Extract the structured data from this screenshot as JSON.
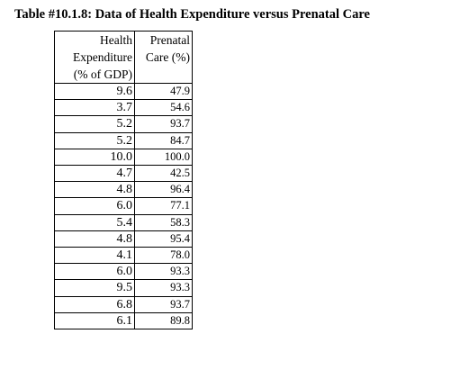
{
  "table": {
    "title": "Table #10.1.8: Data of Health Expenditure versus Prenatal Care",
    "headers": [
      [
        "Health",
        "Expenditure",
        "(% of GDP)"
      ],
      [
        "Prenatal",
        "Care (%)"
      ]
    ],
    "rows": [
      [
        "9.6",
        "47.9"
      ],
      [
        "3.7",
        "54.6"
      ],
      [
        "5.2",
        "93.7"
      ],
      [
        "5.2",
        "84.7"
      ],
      [
        "10.0",
        "100.0"
      ],
      [
        "4.7",
        "42.5"
      ],
      [
        "4.8",
        "96.4"
      ],
      [
        "6.0",
        "77.1"
      ],
      [
        "5.4",
        "58.3"
      ],
      [
        "4.8",
        "95.4"
      ],
      [
        "4.1",
        "78.0"
      ],
      [
        "6.0",
        "93.3"
      ],
      [
        "9.5",
        "93.3"
      ],
      [
        "6.8",
        "93.7"
      ],
      [
        "6.1",
        "89.8"
      ]
    ]
  }
}
